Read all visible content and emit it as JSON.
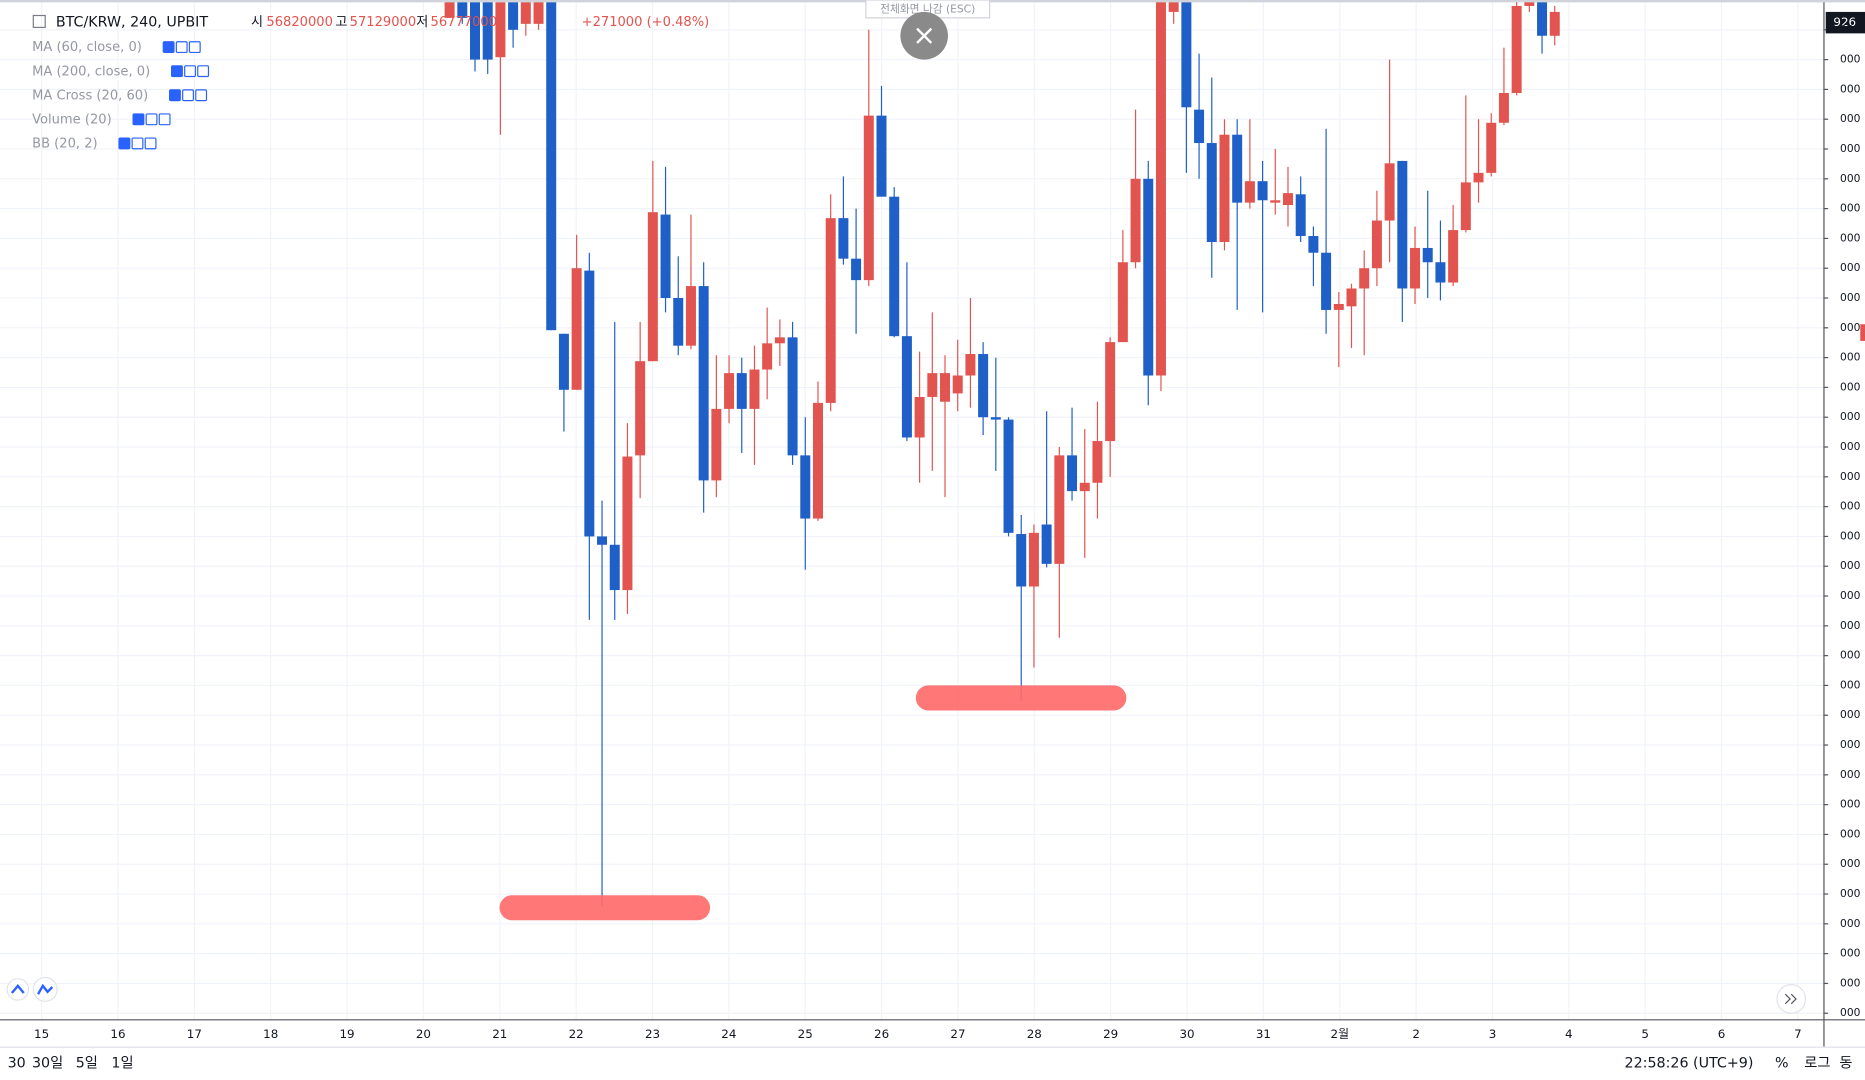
{
  "legend": {
    "symbol": "BTC/KRW, 240, UPBIT",
    "open_label": "시",
    "open": "56820000",
    "high_label": "고",
    "high": "57129000",
    "low_label": "저",
    "low": "56777000",
    "change": "+271000 (+0.48%)",
    "indicators": [
      "MA (60, close, 0)",
      "MA (200, close, 0)",
      "MA Cross (20, 60)",
      "Volume (20)",
      "BB (20, 2)"
    ]
  },
  "fullscreen_hint": "전체화면 나감 (ESC)",
  "price_tag": "926",
  "bottom_bar": {
    "ranges": [
      "30",
      "30일",
      "5일",
      "1일"
    ],
    "clock": "22:58:26 (UTC+9)",
    "percent": "%",
    "log": "로그",
    "auto": "동"
  },
  "chart_data": {
    "type": "candlestick",
    "up_color": "#e2544f",
    "down_color": "#1e5fc8",
    "grid": true,
    "x_labels": [
      "15",
      "16",
      "17",
      "18",
      "19",
      "20",
      "21",
      "22",
      "23",
      "24",
      "25",
      "26",
      "27",
      "28",
      "29",
      "30",
      "31",
      "2월",
      "2",
      "3",
      "4",
      "5",
      "6",
      "7"
    ],
    "ylim": [
      33180000,
      36600000
    ],
    "yticks": [
      {
        "value": 36500000,
        "label": "000"
      },
      {
        "value": 36400000,
        "label": "000"
      },
      {
        "value": 36300000,
        "label": "000"
      },
      {
        "value": 36200000,
        "label": "000"
      },
      {
        "value": 36100000,
        "label": "000"
      },
      {
        "value": 36000000,
        "label": "000"
      },
      {
        "value": 35900000,
        "label": "000"
      },
      {
        "value": 35800000,
        "label": "000"
      },
      {
        "value": 35700000,
        "label": "000"
      },
      {
        "value": 35600000,
        "label": "000"
      },
      {
        "value": 35500000,
        "label": "000"
      },
      {
        "value": 35400000,
        "label": "000"
      },
      {
        "value": 35300000,
        "label": "000"
      },
      {
        "value": 35200000,
        "label": "000"
      },
      {
        "value": 35100000,
        "label": "000"
      },
      {
        "value": 35000000,
        "label": "000"
      },
      {
        "value": 34900000,
        "label": "000"
      },
      {
        "value": 34800000,
        "label": "000"
      },
      {
        "value": 34700000,
        "label": "000"
      },
      {
        "value": 34600000,
        "label": "000"
      },
      {
        "value": 34500000,
        "label": "000"
      },
      {
        "value": 34400000,
        "label": "000"
      },
      {
        "value": 34300000,
        "label": "000"
      },
      {
        "value": 34200000,
        "label": "000"
      },
      {
        "value": 34100000,
        "label": "000"
      },
      {
        "value": 34000000,
        "label": "000"
      },
      {
        "value": 33900000,
        "label": "000"
      },
      {
        "value": 33800000,
        "label": "000"
      },
      {
        "value": 33700000,
        "label": "000"
      },
      {
        "value": 33600000,
        "label": "000"
      },
      {
        "value": 33500000,
        "label": "000"
      },
      {
        "value": 33400000,
        "label": "000"
      },
      {
        "value": 33300000,
        "label": "000"
      },
      {
        "value": 33200000,
        "label": "000"
      }
    ],
    "open": [
      36540000,
      36600000,
      36600000,
      36600000,
      36408000,
      36600000,
      36520000,
      36520000,
      36600000,
      35480000,
      35292000,
      35692000,
      34800000,
      34772000,
      34620000,
      35072000,
      35388000,
      35880000,
      35600000,
      35440000,
      35640000,
      34988000,
      35228000,
      35348000,
      35228000,
      35360000,
      35448000,
      35468000,
      35072000,
      34860000,
      35248000,
      35868000,
      35732000,
      35660000,
      36212000,
      35940000,
      35472000,
      35132000,
      35268000,
      35252000,
      35280000,
      35340000,
      35412000,
      35200000,
      35192000,
      34808000,
      34632000,
      34840000,
      34708000,
      35072000,
      34952000,
      34980000,
      35120000,
      35452000,
      35720000,
      36000000,
      35340000,
      36560000,
      36600000,
      36232000,
      36120000,
      35788000,
      36148000,
      35920000,
      35992000,
      35920000,
      35912000,
      35948000,
      35808000,
      35752000,
      35560000,
      35572000,
      35632000,
      35700000,
      35860000,
      36060000,
      35632000,
      35768000,
      35720000,
      35652000,
      35828000,
      35988000,
      36020000,
      36188000,
      36288000,
      36580000,
      36600000,
      36480000
    ],
    "high": [
      36620000,
      36620000,
      36620000,
      36620000,
      36620000,
      36620000,
      36620000,
      36620000,
      36620000,
      35480000,
      35812000,
      35752000,
      34920000,
      35520000,
      35180000,
      35520000,
      36060000,
      36040000,
      35740000,
      35880000,
      35720000,
      35408000,
      35408000,
      35400000,
      35440000,
      35568000,
      35528000,
      35520000,
      35200000,
      35320000,
      35948000,
      36008000,
      35900000,
      36500000,
      36312000,
      35972000,
      35720000,
      35420000,
      35552000,
      35408000,
      35460000,
      35600000,
      35452000,
      35400000,
      35200000,
      34872000,
      34840000,
      35220000,
      35100000,
      35232000,
      35160000,
      35252000,
      35468000,
      35828000,
      36232000,
      36060000,
      36620000,
      36620000,
      36620000,
      36420000,
      36340000,
      36200000,
      36200000,
      36200000,
      36060000,
      36100000,
      36040000,
      36008000,
      35840000,
      36168000,
      35620000,
      35648000,
      35760000,
      35960000,
      36400000,
      36060000,
      35840000,
      35960000,
      35860000,
      35912000,
      36280000,
      36200000,
      36220000,
      36440000,
      36620000,
      36620000,
      36620000,
      36580000
    ],
    "low": [
      36540000,
      36520000,
      36360000,
      36352000,
      36148000,
      36440000,
      36480000,
      36500000,
      35492000,
      35152000,
      35292000,
      34520000,
      33560000,
      34520000,
      34540000,
      34928000,
      35388000,
      35552000,
      35408000,
      35428000,
      34880000,
      34932000,
      35180000,
      35080000,
      35040000,
      35260000,
      35372000,
      35040000,
      34688000,
      34852000,
      35220000,
      35712000,
      35480000,
      35640000,
      35940000,
      35468000,
      35120000,
      34980000,
      35020000,
      34932000,
      35220000,
      35232000,
      35140000,
      35020000,
      34800000,
      34248000,
      34360000,
      34696000,
      34460000,
      34920000,
      34728000,
      34860000,
      35000000,
      35452000,
      35700000,
      35240000,
      35288000,
      36520000,
      36020000,
      36000000,
      35668000,
      35760000,
      35560000,
      35900000,
      35552000,
      35880000,
      35840000,
      35788000,
      35640000,
      35480000,
      35368000,
      35432000,
      35408000,
      35640000,
      35720000,
      35520000,
      35580000,
      35600000,
      35592000,
      35640000,
      35820000,
      35920000,
      36008000,
      36180000,
      36280000,
      36560000,
      36420000,
      36448000
    ],
    "close": [
      36600000,
      36540000,
      36400000,
      36400000,
      36600000,
      36500000,
      36600000,
      36600000,
      35492000,
      35292000,
      35700000,
      34800000,
      34772000,
      34620000,
      35068000,
      35388000,
      35888000,
      35600000,
      35440000,
      35640000,
      34988000,
      35228000,
      35348000,
      35228000,
      35360000,
      35448000,
      35468000,
      35072000,
      34860000,
      35248000,
      35868000,
      35732000,
      35660000,
      36212000,
      35940000,
      35472000,
      35132000,
      35268000,
      35348000,
      35348000,
      35340000,
      35412000,
      35200000,
      35192000,
      34812000,
      34632000,
      34812000,
      34708000,
      35072000,
      34952000,
      34980000,
      35120000,
      35452000,
      35720000,
      36000000,
      35340000,
      36600000,
      36600000,
      36240000,
      36120000,
      35788000,
      36148000,
      35920000,
      35992000,
      35928000,
      35928000,
      35952000,
      35808000,
      35752000,
      35560000,
      35580000,
      35632000,
      35700000,
      35860000,
      36052000,
      35632000,
      35768000,
      35720000,
      35652000,
      35828000,
      35988000,
      36020000,
      36188000,
      36288000,
      36580000,
      36600000,
      36480000,
      36560000
    ]
  }
}
